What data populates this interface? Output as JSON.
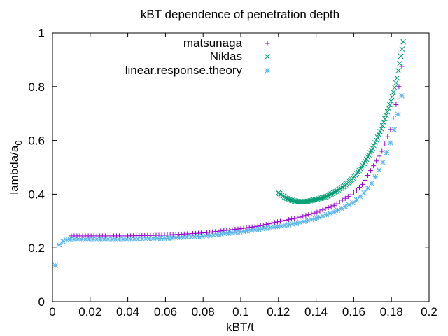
{
  "chart_data": {
    "type": "scatter",
    "title": "kBT dependence of penetration depth",
    "xlabel": "kBT/t",
    "ylabel_main": "lambda/a",
    "ylabel_sub": "0",
    "xlim": [
      0,
      0.2
    ],
    "ylim": [
      0,
      1
    ],
    "xticks": [
      "0",
      "0.02",
      "0.04",
      "0.06",
      "0.08",
      "0.1",
      "0.12",
      "0.14",
      "0.16",
      "0.18",
      "0.2"
    ],
    "yticks": [
      "0",
      "0.2",
      "0.4",
      "0.6",
      "0.8",
      "1"
    ],
    "grid": false,
    "legend_position": "top-right",
    "series": [
      {
        "name": "matsunaga",
        "marker": "plus",
        "color": "#9400d3",
        "x_start": 0.01,
        "x_end": 0.186,
        "x_step": 0.0015,
        "anchors": [
          [
            0.01,
            0.245
          ],
          [
            0.04,
            0.245
          ],
          [
            0.06,
            0.248
          ],
          [
            0.08,
            0.256
          ],
          [
            0.1,
            0.272
          ],
          [
            0.11,
            0.282
          ],
          [
            0.12,
            0.298
          ],
          [
            0.13,
            0.312
          ],
          [
            0.14,
            0.332
          ],
          [
            0.15,
            0.36
          ],
          [
            0.16,
            0.405
          ],
          [
            0.165,
            0.44
          ],
          [
            0.17,
            0.5
          ],
          [
            0.175,
            0.56
          ],
          [
            0.18,
            0.65
          ],
          [
            0.183,
            0.75
          ],
          [
            0.186,
            0.9
          ]
        ]
      },
      {
        "name": "Niklas",
        "marker": "cross",
        "color": "#009e73",
        "x_start": 0.12,
        "x_end": 0.1865,
        "x_step": 0.00065,
        "anchors": [
          [
            0.12,
            0.405
          ],
          [
            0.125,
            0.382
          ],
          [
            0.13,
            0.372
          ],
          [
            0.135,
            0.373
          ],
          [
            0.14,
            0.38
          ],
          [
            0.145,
            0.39
          ],
          [
            0.15,
            0.408
          ],
          [
            0.155,
            0.43
          ],
          [
            0.16,
            0.462
          ],
          [
            0.165,
            0.508
          ],
          [
            0.17,
            0.57
          ],
          [
            0.175,
            0.65
          ],
          [
            0.18,
            0.75
          ],
          [
            0.183,
            0.83
          ],
          [
            0.1865,
            0.975
          ]
        ]
      },
      {
        "name": "linear.response.theory",
        "marker": "star",
        "color": "#56b4e9",
        "x_start": 0.0015,
        "x_end": 0.1865,
        "x_step": 0.002,
        "anchors": [
          [
            0.0015,
            0.135
          ],
          [
            0.0035,
            0.212
          ],
          [
            0.006,
            0.228
          ],
          [
            0.01,
            0.232
          ],
          [
            0.04,
            0.232
          ],
          [
            0.06,
            0.236
          ],
          [
            0.08,
            0.244
          ],
          [
            0.1,
            0.26
          ],
          [
            0.12,
            0.28
          ],
          [
            0.13,
            0.292
          ],
          [
            0.14,
            0.31
          ],
          [
            0.15,
            0.335
          ],
          [
            0.16,
            0.37
          ],
          [
            0.165,
            0.4
          ],
          [
            0.17,
            0.445
          ],
          [
            0.175,
            0.51
          ],
          [
            0.18,
            0.6
          ],
          [
            0.183,
            0.68
          ],
          [
            0.1865,
            0.8
          ]
        ]
      }
    ]
  }
}
